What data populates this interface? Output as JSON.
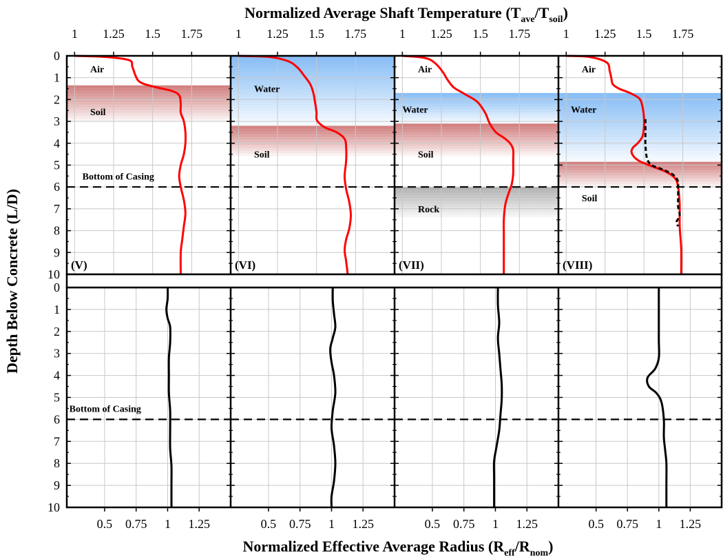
{
  "figure": {
    "top_axis_label": {
      "main": "Normalized Average Shaft Temperature (T",
      "sub1": "ave",
      "mid": "/T",
      "sub2": "soil",
      "end": ")"
    },
    "bottom_axis_label": {
      "main": "Normalized Effective Average Radius (R",
      "sub1": "eff",
      "mid": "/R",
      "sub2": "nom",
      "end": ")"
    },
    "y_axis_label": "Depth Below Concrete (L/D)",
    "bottom_of_casing_label": "Bottom of Casing"
  },
  "chart_data": [
    {
      "type": "line",
      "role": "temperature panels (top row)",
      "xlabel": "Normalized Average Shaft Temperature (Tave/Tsoil)",
      "ylabel": "Depth Below Concrete (L/D)",
      "xlim": [
        0.95,
        2.0
      ],
      "xticks": [
        "1",
        "1.25",
        "1.5",
        "1.75"
      ],
      "ylim": [
        0,
        10
      ],
      "yticks": [
        "0",
        "1",
        "2",
        "3",
        "4",
        "5",
        "6",
        "7",
        "8",
        "9",
        "10"
      ],
      "y_inverted": true,
      "grid": true,
      "bottom_of_casing_depth": 6,
      "panels": [
        {
          "label": "(V)",
          "layers": [
            {
              "name": "Air",
              "top": 0,
              "bottom": 1.35,
              "color": null
            },
            {
              "name": "Soil",
              "top": 1.35,
              "bottom": 3.0,
              "color": "#c0392b"
            }
          ],
          "layer_labels": [
            {
              "text": "Air",
              "depth": 0.6,
              "x": 1.1
            },
            {
              "text": "Soil",
              "depth": 2.55,
              "x": 1.1
            },
            {
              "text": "Bottom of Casing",
              "depth": 5.5,
              "x": 1.05
            }
          ],
          "series": [
            {
              "name": "",
              "color": "#ff0000",
              "style": "solid",
              "x": [
                1.0,
                1.2,
                1.35,
                1.37,
                1.39,
                1.41,
                1.45,
                1.53,
                1.62,
                1.67,
                1.68,
                1.68,
                1.7,
                1.71,
                1.71,
                1.7,
                1.68,
                1.67,
                1.68,
                1.7,
                1.71,
                1.7,
                1.69,
                1.68,
                1.68
              ],
              "y": [
                0,
                0.05,
                0.2,
                0.5,
                0.9,
                1.15,
                1.3,
                1.45,
                1.6,
                1.8,
                2.2,
                2.6,
                3.0,
                3.5,
                4.0,
                4.5,
                5.0,
                5.5,
                6.0,
                6.6,
                7.2,
                7.8,
                8.4,
                9.0,
                10.0
              ]
            }
          ]
        },
        {
          "label": "(VI)",
          "layers": [
            {
              "name": "Water",
              "top": 0,
              "bottom": 3.2,
              "color": "#6aaaf0"
            },
            {
              "name": "Soil",
              "top": 3.2,
              "bottom": 4.6,
              "color": "#c0392b"
            }
          ],
          "layer_labels": [
            {
              "text": "Water",
              "depth": 1.5,
              "x": 1.1
            },
            {
              "text": "Soil",
              "depth": 4.5,
              "x": 1.1
            }
          ],
          "series": [
            {
              "name": "",
              "color": "#ff0000",
              "style": "solid",
              "x": [
                1.0,
                1.2,
                1.32,
                1.38,
                1.42,
                1.46,
                1.48,
                1.49,
                1.5,
                1.5,
                1.52,
                1.56,
                1.63,
                1.68,
                1.69,
                1.69,
                1.68,
                1.69,
                1.71,
                1.72,
                1.71,
                1.69,
                1.68,
                1.69,
                1.7
              ],
              "y": [
                0,
                0.05,
                0.25,
                0.55,
                0.9,
                1.3,
                1.7,
                2.1,
                2.6,
                2.9,
                3.1,
                3.3,
                3.5,
                3.8,
                4.2,
                4.8,
                5.5,
                6.1,
                6.7,
                7.3,
                7.9,
                8.4,
                8.9,
                9.4,
                10.0
              ]
            }
          ]
        },
        {
          "label": "(VII)",
          "layers": [
            {
              "name": "Air",
              "top": 0,
              "bottom": 1.7,
              "color": null
            },
            {
              "name": "Water",
              "top": 1.7,
              "bottom": 3.1,
              "color": "#6aaaf0"
            },
            {
              "name": "Soil",
              "top": 3.1,
              "bottom": 4.6,
              "color": "#c0392b"
            },
            {
              "name": "Rock",
              "top": 6.0,
              "bottom": 7.4,
              "color": "#888888"
            }
          ],
          "layer_labels": [
            {
              "text": "Air",
              "depth": 0.6,
              "x": 1.1
            },
            {
              "text": "Water",
              "depth": 2.45,
              "x": 1.0
            },
            {
              "text": "Soil",
              "depth": 4.5,
              "x": 1.1
            },
            {
              "text": "Rock",
              "depth": 7.0,
              "x": 1.1
            }
          ],
          "series": [
            {
              "name": "",
              "color": "#ff0000",
              "style": "solid",
              "x": [
                1.0,
                1.1,
                1.17,
                1.22,
                1.26,
                1.29,
                1.33,
                1.4,
                1.48,
                1.53,
                1.56,
                1.6,
                1.65,
                1.69,
                1.71,
                1.71,
                1.71,
                1.7,
                1.68,
                1.66,
                1.65,
                1.65,
                1.65,
                1.65,
                1.65
              ],
              "y": [
                0,
                0.05,
                0.15,
                0.4,
                0.75,
                1.1,
                1.45,
                1.75,
                2.1,
                2.6,
                3.1,
                3.5,
                3.75,
                4.0,
                4.3,
                4.8,
                5.4,
                5.9,
                6.3,
                6.8,
                7.5,
                8.2,
                8.9,
                9.5,
                10.0
              ]
            }
          ]
        },
        {
          "label": "(VIII)",
          "layers": [
            {
              "name": "Air",
              "top": 0,
              "bottom": 1.7,
              "color": null
            },
            {
              "name": "Water",
              "top": 1.7,
              "bottom": 4.85,
              "color": "#6aaaf0"
            },
            {
              "name": "Soil",
              "top": 4.85,
              "bottom": 6.0,
              "color": "#c0392b"
            }
          ],
          "layer_labels": [
            {
              "text": "Air",
              "depth": 0.6,
              "x": 1.1
            },
            {
              "text": "Water",
              "depth": 2.45,
              "x": 1.03
            },
            {
              "text": "Soil",
              "depth": 6.5,
              "x": 1.1
            }
          ],
          "series": [
            {
              "name": "",
              "color": "#ff0000",
              "style": "solid",
              "x": [
                1.0,
                1.15,
                1.26,
                1.28,
                1.29,
                1.3,
                1.34,
                1.41,
                1.47,
                1.49,
                1.5,
                1.5,
                1.49,
                1.46,
                1.43,
                1.42,
                1.44,
                1.48,
                1.55,
                1.64,
                1.7,
                1.72,
                1.73,
                1.73,
                1.74,
                1.74
              ],
              "y": [
                0,
                0.05,
                0.3,
                0.7,
                1.0,
                1.3,
                1.5,
                1.7,
                1.95,
                2.3,
                2.8,
                3.3,
                3.7,
                4.0,
                4.2,
                4.4,
                4.65,
                4.85,
                5.05,
                5.3,
                5.6,
                6.0,
                6.8,
                7.8,
                8.8,
                10.0
              ]
            },
            {
              "name": "",
              "color": "#000000",
              "style": "dashed",
              "x": [
                1.51,
                1.51,
                1.51,
                1.52,
                1.55,
                1.62,
                1.69,
                1.72,
                1.72,
                1.72,
                1.72,
                1.73,
                1.71,
                1.72
              ],
              "y": [
                2.9,
                3.5,
                4.1,
                4.7,
                5.0,
                5.2,
                5.45,
                5.75,
                6.0,
                6.5,
                6.9,
                7.3,
                7.6,
                7.8
              ]
            }
          ]
        }
      ]
    },
    {
      "type": "line",
      "role": "radius panels (bottom row)",
      "xlabel": "Normalized Effective Average Radius (Reff/Rnom)",
      "ylabel": "Depth Below Concrete (L/D)",
      "xlim": [
        0.2,
        1.5
      ],
      "xticks": [
        "0.5",
        "0.75",
        "1",
        "1.25"
      ],
      "ylim": [
        0,
        10
      ],
      "yticks": [
        "0",
        "1",
        "2",
        "3",
        "4",
        "5",
        "6",
        "7",
        "8",
        "9",
        "10"
      ],
      "y_inverted": true,
      "grid": true,
      "bottom_of_casing_depth": 6,
      "panels": [
        {
          "layer_labels": [
            {
              "text": "Bottom of Casing",
              "depth": 5.5,
              "x": 0.22
            }
          ],
          "series": [
            {
              "name": "",
              "color": "#000000",
              "style": "solid",
              "x": [
                1.0,
                1.0,
                0.99,
                1.0,
                1.02,
                1.02,
                1.01,
                1.01,
                1.01,
                1.02,
                1.02,
                1.02,
                1.03,
                1.03,
                1.03
              ],
              "y": [
                0,
                0.5,
                1.0,
                1.4,
                1.8,
                2.5,
                3.2,
                4.0,
                4.8,
                5.6,
                6.5,
                7.3,
                8.1,
                9.0,
                10.0
              ]
            }
          ]
        },
        {
          "series": [
            {
              "name": "",
              "color": "#000000",
              "style": "solid",
              "x": [
                1.01,
                1.01,
                1.02,
                1.03,
                1.01,
                0.99,
                1.0,
                1.02,
                1.03,
                1.01,
                1.0,
                1.02,
                1.03,
                1.02,
                1.0,
                1.0
              ],
              "y": [
                0,
                0.6,
                1.2,
                1.8,
                2.3,
                2.8,
                3.4,
                4.0,
                4.8,
                5.6,
                6.4,
                7.2,
                8.0,
                8.8,
                9.5,
                10.0
              ]
            }
          ]
        },
        {
          "series": [
            {
              "name": "",
              "color": "#000000",
              "style": "solid",
              "x": [
                1.02,
                1.02,
                1.03,
                1.02,
                1.03,
                1.04,
                1.05,
                1.05,
                1.04,
                1.03,
                1.01,
                0.99,
                0.99,
                0.99,
                0.99
              ],
              "y": [
                0,
                0.8,
                1.6,
                2.3,
                3.0,
                3.7,
                4.4,
                5.1,
                5.8,
                6.5,
                7.2,
                7.9,
                8.6,
                9.3,
                10.0
              ]
            }
          ]
        },
        {
          "series": [
            {
              "name": "",
              "color": "#000000",
              "style": "solid",
              "x": [
                1.0,
                1.0,
                1.0,
                1.0,
                1.0,
                0.97,
                0.91,
                0.92,
                0.98,
                1.02,
                1.04,
                1.04,
                1.05,
                1.06,
                1.06,
                1.06
              ],
              "y": [
                0,
                0.8,
                1.6,
                2.4,
                3.2,
                3.7,
                4.1,
                4.5,
                4.8,
                5.2,
                6.0,
                6.8,
                7.4,
                8.0,
                9.0,
                10.0
              ]
            }
          ]
        }
      ]
    }
  ]
}
